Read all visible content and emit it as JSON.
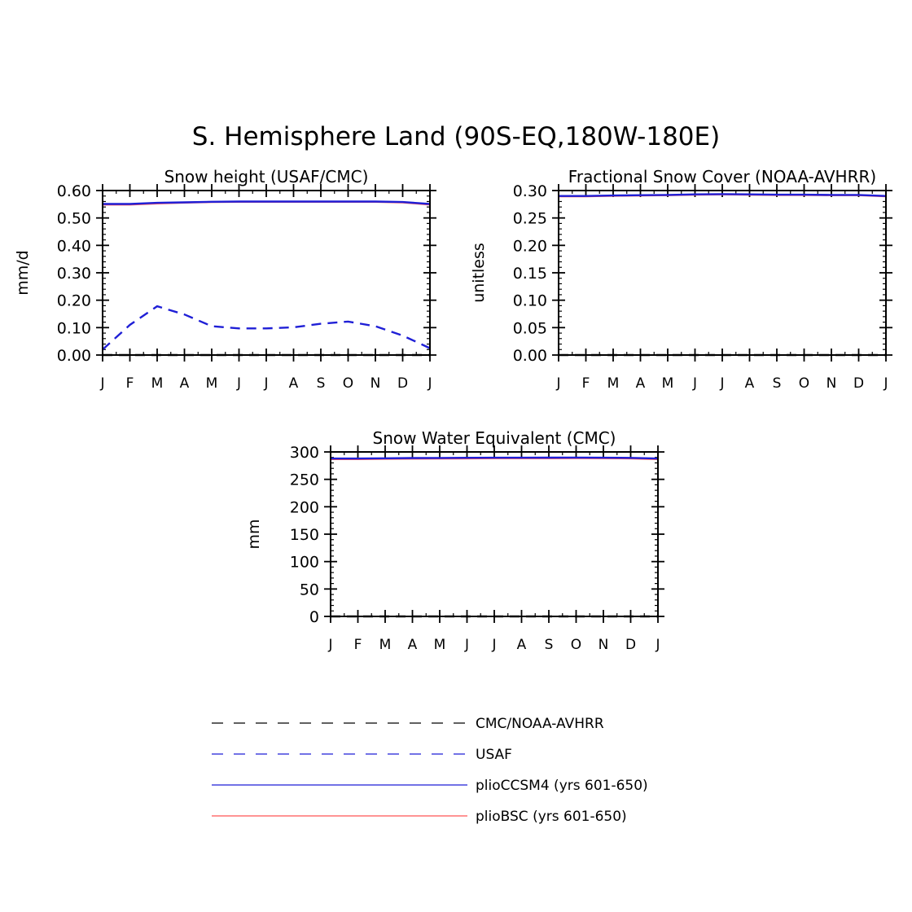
{
  "figure": {
    "title": "S. Hemisphere Land (90S-EQ,180W-180E)"
  },
  "colors": {
    "axis": "#000000",
    "plioCCSM4": "#1f1fd6",
    "plioBSC": "#ff5555",
    "obs_cmc": "#000000",
    "obs_usaf": "#1f1fd6"
  },
  "legend": {
    "items": [
      {
        "label": "CMC/NOAA-AVHRR",
        "style": "dashed",
        "color": "#000000"
      },
      {
        "label": "USAF",
        "style": "dashed",
        "color": "#1f1fd6"
      },
      {
        "label": "plioCCSM4 (yrs 601-650)",
        "style": "solid",
        "color": "#1f1fd6"
      },
      {
        "label": "plioBSC (yrs 601-650)",
        "style": "solid",
        "color": "#ff5555"
      }
    ]
  },
  "chart_data": [
    {
      "type": "line",
      "title": "Snow height (USAF/CMC)",
      "ylabel": "mm/d",
      "xlabel": "",
      "ylim": [
        0,
        0.6
      ],
      "yticks": [
        "0.00",
        "0.10",
        "0.20",
        "0.30",
        "0.40",
        "0.50",
        "0.60"
      ],
      "months": [
        "J",
        "F",
        "M",
        "A",
        "M",
        "J",
        "J",
        "A",
        "S",
        "O",
        "N",
        "D",
        "J"
      ],
      "series": [
        {
          "name": "plioBSC (yrs 601-650)",
          "style": "solid",
          "color": "#ff5555",
          "values": [
            0.549,
            0.549,
            0.553,
            0.556,
            0.558,
            0.559,
            0.559,
            0.559,
            0.559,
            0.559,
            0.559,
            0.557,
            0.549
          ]
        },
        {
          "name": "plioCCSM4 (yrs 601-650)",
          "style": "solid",
          "color": "#1f1fd6",
          "values": [
            0.551,
            0.551,
            0.555,
            0.557,
            0.559,
            0.56,
            0.56,
            0.56,
            0.56,
            0.56,
            0.56,
            0.558,
            0.551
          ]
        },
        {
          "name": "USAF",
          "style": "dashed",
          "color": "#1f1fd6",
          "values": [
            0.02,
            0.11,
            0.178,
            0.148,
            0.105,
            0.097,
            0.097,
            0.101,
            0.114,
            0.122,
            0.105,
            0.071,
            0.025
          ]
        },
        {
          "name": "CMC/NOAA-AVHRR",
          "style": "dashed",
          "color": "#000000",
          "values": [
            0,
            0,
            0,
            0,
            0,
            0,
            0,
            0,
            0,
            0,
            0,
            0,
            0
          ]
        }
      ]
    },
    {
      "type": "line",
      "title": "Fractional Snow Cover (NOAA-AVHRR)",
      "ylabel": "unitless",
      "xlabel": "",
      "ylim": [
        0,
        0.3
      ],
      "yticks": [
        "0.00",
        "0.05",
        "0.10",
        "0.15",
        "0.20",
        "0.25",
        "0.30"
      ],
      "months": [
        "J",
        "F",
        "M",
        "A",
        "M",
        "J",
        "J",
        "A",
        "S",
        "O",
        "N",
        "D",
        "J"
      ],
      "series": [
        {
          "name": "plioBSC (yrs 601-650)",
          "style": "solid",
          "color": "#ff5555",
          "values": [
            0.2895,
            0.2895,
            0.2905,
            0.291,
            0.2915,
            0.2925,
            0.293,
            0.2925,
            0.292,
            0.292,
            0.2915,
            0.2915,
            0.2895
          ]
        },
        {
          "name": "plioCCSM4 (yrs 601-650)",
          "style": "solid",
          "color": "#1f1fd6",
          "values": [
            0.29,
            0.29,
            0.291,
            0.2915,
            0.292,
            0.293,
            0.2935,
            0.293,
            0.2925,
            0.2925,
            0.292,
            0.292,
            0.29
          ]
        },
        {
          "name": "CMC/NOAA-AVHRR",
          "style": "dashed",
          "color": "#000000",
          "values": [
            0,
            0,
            0,
            0,
            0,
            0,
            0,
            0,
            0,
            0,
            0,
            0,
            0
          ]
        }
      ]
    },
    {
      "type": "line",
      "title": "Snow Water Equivalent (CMC)",
      "ylabel": "mm",
      "xlabel": "",
      "ylim": [
        0,
        300
      ],
      "yticks": [
        "0",
        "50",
        "100",
        "150",
        "200",
        "250",
        "300"
      ],
      "months": [
        "J",
        "F",
        "M",
        "A",
        "M",
        "J",
        "J",
        "A",
        "S",
        "O",
        "N",
        "D",
        "J"
      ],
      "series": [
        {
          "name": "plioBSC (yrs 601-650)",
          "style": "solid",
          "color": "#ff5555",
          "values": [
            287,
            287,
            287.5,
            287.8,
            288,
            288.3,
            288.5,
            288.5,
            288.6,
            288.7,
            288.5,
            288.3,
            287
          ]
        },
        {
          "name": "plioCCSM4 (yrs 601-650)",
          "style": "solid",
          "color": "#1f1fd6",
          "values": [
            288,
            288,
            288.4,
            288.8,
            289,
            289.3,
            289.5,
            289.5,
            289.6,
            289.7,
            289.5,
            289.2,
            288
          ]
        },
        {
          "name": "CMC/NOAA-AVHRR",
          "style": "dashed",
          "color": "#000000",
          "values": [
            0,
            0,
            0,
            0,
            0,
            0,
            0,
            0,
            0,
            0,
            0,
            0,
            0
          ]
        }
      ]
    }
  ]
}
